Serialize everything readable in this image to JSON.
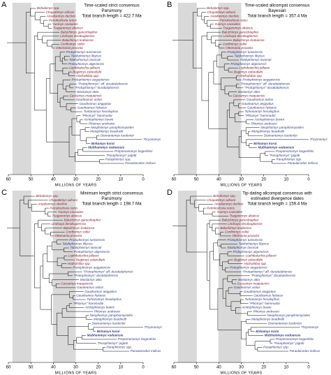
{
  "panels": [
    {
      "letter": "A",
      "title": [
        "Time-scaled strict consensus",
        "Parsimony",
        "Total branch length = 422.7 Ma"
      ]
    },
    {
      "letter": "B",
      "title": [
        "Time-scaled allcompat consensus",
        "Bayesian",
        "Total branch length = 357.4 Ma"
      ]
    },
    {
      "letter": "C",
      "title": [
        "Minimum length strict consensus",
        "Parsimony",
        "Total branch length = 198.7 Ma"
      ]
    },
    {
      "letter": "D",
      "title": [
        "Tip-dating allcompat consensus with",
        "estimated divergence dates",
        "Total branch length = 159.4 Ma"
      ]
    }
  ],
  "taxa": [
    {
      "name": "Birbalomys spp.",
      "color": "#8b1a2b"
    },
    {
      "name": "Chapattimys wilsoni",
      "color": "#8b1a2b"
    },
    {
      "name": "Anadianmys declivis",
      "color": "#8b1a2b"
    },
    {
      "name": "Petrokozlovia notos",
      "color": "#8b1a2b"
    },
    {
      "name": "Yuomys cavioides",
      "color": "#8b1a2b"
    },
    {
      "name": "Tsaganomys altaicus",
      "color": "#8b1a2b"
    },
    {
      "name": "Baluchimys ganeshtapher",
      "color": "#8b1a2b"
    },
    {
      "name": "Lindsaya derabugtiensis",
      "color": "#8b1a2b"
    },
    {
      "name": "Baluchimys krabiense",
      "color": "#8b1a2b"
    },
    {
      "name": "Confinimys sollei",
      "color": "#8b1a2b"
    },
    {
      "name": "Ottomania proavita",
      "color": "#8b1a2b"
    },
    {
      "name": "Protophiomys tunisiensis",
      "color": "#2e3a8c"
    },
    {
      "name": "Talahphiomys libycus",
      "color": "#2e3a8c"
    },
    {
      "name": "Talahphiomys lavocati",
      "color": "#2e3a8c"
    },
    {
      "name": "Protophiomys algeriensis",
      "color": "#2e3a8c"
    },
    {
      "name": "Lophibaluchia jallaeni",
      "color": "#8b1a2b"
    },
    {
      "name": "Bugtimys zafarullahi",
      "color": "#8b1a2b"
    },
    {
      "name": "Hodsahibia spp.",
      "color": "#8b1a2b"
    },
    {
      "name": "Protophiomys aegyptensis",
      "color": "#2e3a8c"
    },
    {
      "name": "\"Protophiomys\" aff. durattalahensis",
      "color": "#2e3a8c"
    },
    {
      "name": "\"Protophiomys\" durattalahensis",
      "color": "#2e3a8c"
    },
    {
      "name": "Waslamys attia",
      "color": "#2e3a8c"
    },
    {
      "name": "Cassamys maquiensis",
      "color": "#8b1a2b"
    },
    {
      "name": "Gaudeamus aslius",
      "color": "#2e3a8c"
    },
    {
      "name": "Gaudeamus aegyptius",
      "color": "#2e3a8c"
    },
    {
      "name": "Gaudeamus hylaeus",
      "color": "#2e3a8c"
    },
    {
      "name": "Turkanamys hexalophus",
      "color": "#2e3a8c"
    },
    {
      "name": "\"Phiomys\" hammudai",
      "color": "#2e3a8c"
    },
    {
      "name": "Acritophiomys bowni",
      "color": "#2e3a8c"
    },
    {
      "name": "Phiomys andrewsi",
      "color": "#2e3a8c"
    },
    {
      "name": "Neophiomys paraphiomyoides",
      "color": "#2e3a8c"
    },
    {
      "name": "Metaphiomys beadnelli",
      "color": "#2e3a8c"
    },
    {
      "name": "Diamantomys luederitzi",
      "color": "#2e3a8c"
    },
    {
      "name": "Thryonomys",
      "color": "#2e3a8c"
    },
    {
      "name": "Birkamys korai",
      "color": "#2e3a8c",
      "bold": true
    },
    {
      "name": "Mubhammys vaduensis",
      "color": "#2e3a8c",
      "bold": true
    },
    {
      "name": "Prepomonomys bogenfelsi",
      "color": "#2e3a8c"
    },
    {
      "name": "\"Paraphiomys\" pigotti",
      "color": "#2e3a8c"
    },
    {
      "name": "Paraphiomys spp.",
      "color": "#2e3a8c"
    },
    {
      "name": "Paraulacodus indicus",
      "color": "#2e3a8c"
    }
  ],
  "ticks": [
    60,
    50,
    40,
    30,
    20,
    10,
    0
  ],
  "axis_label": "MILLIONS OF YEARS"
}
